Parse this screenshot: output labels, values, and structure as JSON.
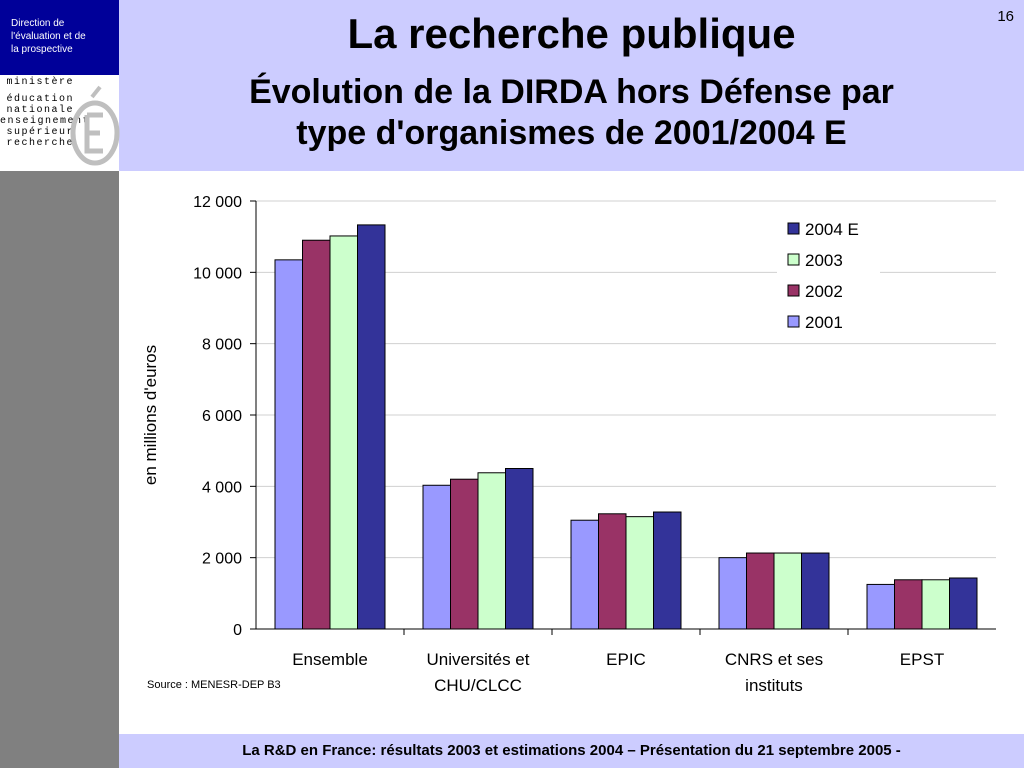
{
  "sidebar": {
    "direction_label": "Direction de\nl'évaluation  et de\nla prospective",
    "logo_lines": [
      "ministère",
      "éducation",
      "nationale",
      "enseignement",
      "supérieur",
      "recherche"
    ]
  },
  "slide": {
    "page_number": "16",
    "title": "La recherche publique",
    "subtitle": "Évolution de la DIRDA hors Défense par\ntype d'organismes de 2001/2004 E",
    "source": "Source : MENESR-DEP B3",
    "footer": "La R&D en France: résultats 2003 et estimations 2004 – Présentation du 21 septembre 2005 -"
  },
  "chart_data": {
    "type": "bar",
    "ylabel": "en millions d'euros",
    "ylim": [
      0,
      12000
    ],
    "yticks": [
      0,
      2000,
      4000,
      6000,
      8000,
      10000,
      12000
    ],
    "ytick_labels": [
      "0",
      "2 000",
      "4 000",
      "6 000",
      "8 000",
      "10 000",
      "12 000"
    ],
    "grid": true,
    "legend_position": "top-right",
    "categories": [
      "Ensemble",
      "Universités et\nCHU/CLCC",
      "EPIC",
      "CNRS et ses\ninstituts",
      "EPST"
    ],
    "series": [
      {
        "name": "2001",
        "color": "#9999ff",
        "values": [
          10350,
          4030,
          3050,
          2000,
          1250
        ]
      },
      {
        "name": "2002",
        "color": "#993366",
        "values": [
          10900,
          4200,
          3230,
          2130,
          1380
        ]
      },
      {
        "name": "2003",
        "color": "#ccffcc",
        "values": [
          11020,
          4380,
          3150,
          2130,
          1380
        ]
      },
      {
        "name": "2004 E",
        "color": "#333399",
        "values": [
          11330,
          4500,
          3280,
          2130,
          1430
        ]
      }
    ],
    "legend_order": [
      "2004 E",
      "2003",
      "2002",
      "2001"
    ]
  }
}
